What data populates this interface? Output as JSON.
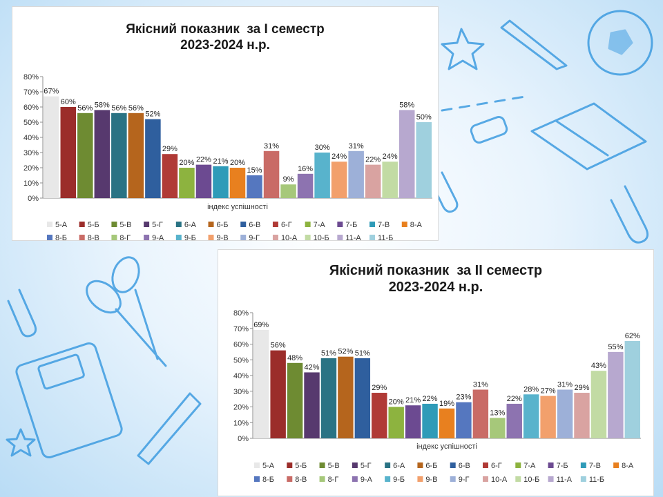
{
  "chart_data": [
    {
      "type": "bar",
      "title": "Якісний показник  за І семестр",
      "subtitle": "2023-2024 н.р.",
      "xlabel": "індекс успішності",
      "ylabel": "",
      "ylim": [
        0,
        80
      ],
      "yticks": [
        "0%",
        "10%",
        "20%",
        "30%",
        "40%",
        "50%",
        "60%",
        "70%",
        "80%"
      ],
      "categories": [
        "5-А",
        "5-Б",
        "5-В",
        "5-Г",
        "6-А",
        "6-Б",
        "6-В",
        "6-Г",
        "7-А",
        "7-Б",
        "7-В",
        "8-А",
        "8-Б",
        "8-В",
        "8-Г",
        "9-А",
        "9-Б",
        "9-В",
        "9-Г",
        "10-А",
        "10-Б",
        "11-А",
        "11-Б"
      ],
      "values": [
        67,
        60,
        56,
        58,
        56,
        56,
        52,
        29,
        20,
        22,
        21,
        20,
        15,
        31,
        9,
        16,
        30,
        24,
        31,
        22,
        24,
        58,
        50
      ],
      "data_labels": [
        "67%",
        "60%",
        "56%",
        "58%",
        "56%",
        "56%",
        "52%",
        "29%",
        "20%",
        "22%",
        "21%",
        "20%",
        "15%",
        "31%",
        "9%",
        "16%",
        "30%",
        "24%",
        "31%",
        "22%",
        "24%",
        "58%",
        "50%"
      ],
      "legend_position": "bottom",
      "grid": false
    },
    {
      "type": "bar",
      "title": "Якісний показник  за ІІ семестр",
      "subtitle": "2023-2024 н.р.",
      "xlabel": "індекс успішності",
      "ylabel": "",
      "ylim": [
        0,
        80
      ],
      "yticks": [
        "0%",
        "10%",
        "20%",
        "30%",
        "40%",
        "50%",
        "60%",
        "70%",
        "80%"
      ],
      "categories": [
        "5-А",
        "5-Б",
        "5-В",
        "5-Г",
        "6-А",
        "6-Б",
        "6-В",
        "6-Г",
        "7-А",
        "7-Б",
        "7-В",
        "8-А",
        "8-Б",
        "8-В",
        "8-Г",
        "9-А",
        "9-Б",
        "9-В",
        "9-Г",
        "10-А",
        "10-Б",
        "11-А",
        "11-Б"
      ],
      "values": [
        69,
        56,
        48,
        42,
        51,
        52,
        51,
        29,
        20,
        21,
        22,
        19,
        23,
        31,
        13,
        22,
        28,
        27,
        31,
        29,
        43,
        55,
        62
      ],
      "data_labels": [
        "69%",
        "56%",
        "48%",
        "42%",
        "51%",
        "52%",
        "51%",
        "29%",
        "20%",
        "21%",
        "22%",
        "19%",
        "23%",
        "31%",
        "13%",
        "22%",
        "28%",
        "27%",
        "31%",
        "29%",
        "43%",
        "55%",
        "62%"
      ],
      "legend_position": "bottom",
      "grid": false
    }
  ],
  "series_colors": [
    "#e8e8e8",
    "#9b2d2a",
    "#6e8b32",
    "#57396e",
    "#2a7384",
    "#b5651d",
    "#2f5f9e",
    "#b03a36",
    "#8db33f",
    "#6c4a91",
    "#2f9bb8",
    "#e8801f",
    "#5577bf",
    "#c96b66",
    "#a6c87a",
    "#8d73b0",
    "#58b3cc",
    "#f2a06c",
    "#9db0d8",
    "#d9a3a1",
    "#c2dba4",
    "#b7a8cf",
    "#9fd0de"
  ]
}
